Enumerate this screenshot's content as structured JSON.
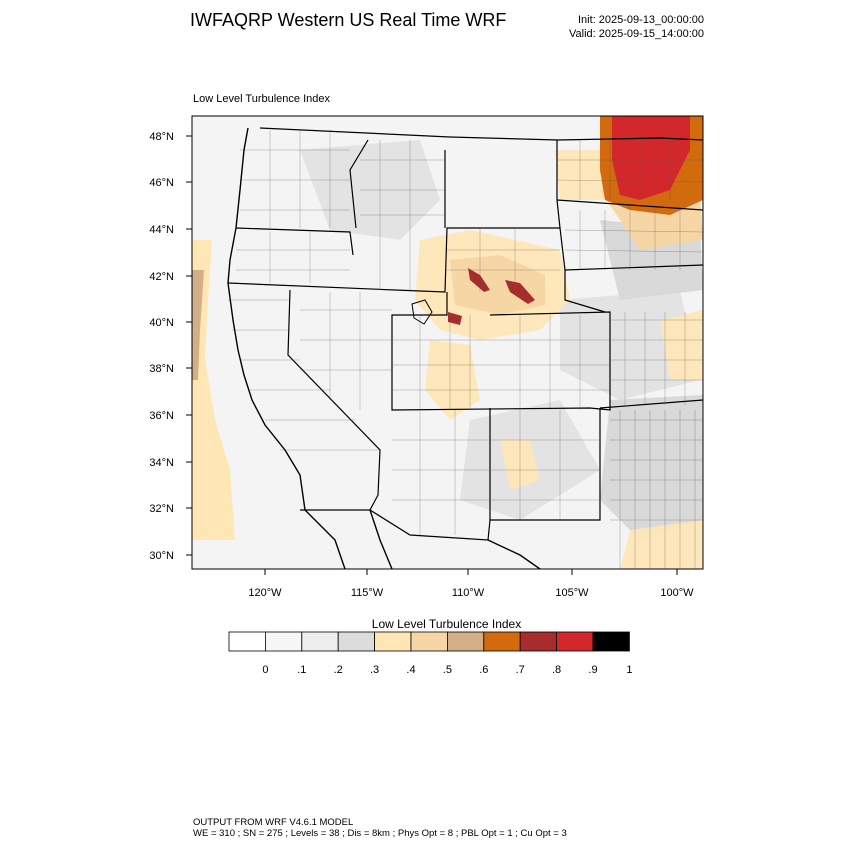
{
  "header": {
    "title": "IWFAQRP Western US Real Time WRF",
    "init": "Init: 2025-09-13_00:00:00",
    "valid": "Valid: 2025-09-15_14:00:00"
  },
  "map": {
    "field_name": "Low Level Turbulence Index",
    "lat_labels": [
      "48°N",
      "46°N",
      "44°N",
      "42°N",
      "40°N",
      "38°N",
      "36°N",
      "34°N",
      "32°N",
      "30°N"
    ],
    "lon_labels": [
      "120°W",
      "115°W",
      "110°W",
      "105°W",
      "100°W"
    ],
    "lat_range": [
      29.5,
      48.8
    ],
    "lon_range": [
      -123.6,
      -98.4
    ]
  },
  "colorbar": {
    "title": "Low Level Turbulence Index",
    "ticks": [
      "0",
      ".1",
      ".2",
      ".3",
      ".4",
      ".5",
      ".6",
      ".7",
      ".8",
      ".9",
      "1"
    ],
    "colors": [
      "#ffffff",
      "#f7f7f7",
      "#eeeeee",
      "#dcdcdc",
      "#ffe7b5",
      "#f7d6a6",
      "#d2af86",
      "#d26b0e",
      "#a72d2d",
      "#d3282b",
      "#000000"
    ]
  },
  "footer": {
    "line1": "OUTPUT FROM WRF V4.6.1 MODEL",
    "line2": "WE = 310 ; SN = 275 ; Levels = 38 ; Dis = 8km ; Phys Opt = 8 ; PBL Opt = 1 ; Cu Opt = 3"
  }
}
